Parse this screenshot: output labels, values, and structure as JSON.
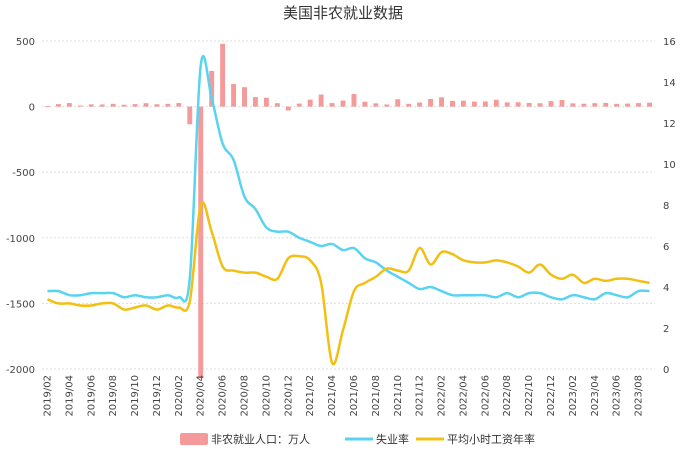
{
  "chart_data": {
    "type": "bar",
    "title": "美国非农就业数据",
    "colors": {
      "bar": "#f59a9a",
      "unemployment": "#5ad3f0",
      "wage": "#f2c012",
      "grid": "#dddddd",
      "text": "#444444"
    },
    "grid": true,
    "legend_position": "bottom",
    "y_left": {
      "ticks": [
        500,
        0,
        -500,
        -1000,
        -1500,
        -2000
      ],
      "ylim": [
        -2000,
        500
      ]
    },
    "y_right": {
      "ticks": [
        16,
        14,
        12,
        10,
        8,
        6,
        4,
        2,
        0
      ],
      "ylim": [
        0,
        16
      ]
    },
    "categories": [
      "2019/02",
      "2019/03",
      "2019/04",
      "2019/05",
      "2019/06",
      "2019/07",
      "2019/08",
      "2019/09",
      "2019/10",
      "2019/11",
      "2019/12",
      "2020/01",
      "2020/02",
      "2020/03",
      "2020/04",
      "2020/05",
      "2020/06",
      "2020/07",
      "2020/08",
      "2020/09",
      "2020/10",
      "2020/11",
      "2020/12",
      "2021/01",
      "2021/02",
      "2021/03",
      "2021/04",
      "2021/05",
      "2021/06",
      "2021/07",
      "2021/08",
      "2021/09",
      "2021/10",
      "2021/11",
      "2021/12",
      "2022/01",
      "2022/02",
      "2022/03",
      "2022/04",
      "2022/05",
      "2022/06",
      "2022/07",
      "2022/08",
      "2022/09",
      "2022/10",
      "2022/11",
      "2022/12",
      "2023/01",
      "2023/02",
      "2023/03",
      "2023/04",
      "2023/05",
      "2023/06",
      "2023/07",
      "2023/08",
      "2023/09"
    ],
    "x_tick_labels": [
      "2019/02",
      "2019/04",
      "2019/06",
      "2019/08",
      "2019/10",
      "2019/12",
      "2020/02",
      "2020/04",
      "2020/06",
      "2020/08",
      "2020/10",
      "2020/12",
      "2021/02",
      "2021/04",
      "2021/06",
      "2021/08",
      "2021/10",
      "2021/12",
      "2022/02",
      "2022/04",
      "2022/06",
      "2022/08",
      "2022/10",
      "2022/12",
      "2023/02",
      "2023/04",
      "2023/06",
      "2023/08"
    ],
    "series": [
      {
        "name": "非农就业人口：万人",
        "type": "bar",
        "axis": "left",
        "values": [
          3,
          19,
          27,
          8,
          17,
          16,
          21,
          14,
          19,
          26,
          18,
          21,
          27,
          -135,
          -2070,
          272,
          479,
          172,
          148,
          72,
          68,
          26,
          -29,
          23,
          53,
          92,
          27,
          46,
          96,
          37,
          25,
          16,
          56,
          21,
          31,
          58,
          71,
          43,
          45,
          38,
          39,
          52,
          32,
          33,
          28,
          26,
          42,
          50,
          25,
          22,
          26,
          28,
          21,
          23,
          27,
          30
        ]
      },
      {
        "name": "失业率",
        "type": "line",
        "axis": "right",
        "values": [
          3.8,
          3.8,
          3.6,
          3.6,
          3.7,
          3.7,
          3.7,
          3.5,
          3.6,
          3.5,
          3.5,
          3.6,
          3.5,
          4.4,
          14.8,
          13.2,
          11.0,
          10.2,
          8.4,
          7.8,
          6.9,
          6.7,
          6.7,
          6.4,
          6.2,
          6.0,
          6.1,
          5.8,
          5.9,
          5.4,
          5.2,
          4.8,
          4.5,
          4.2,
          3.9,
          4.0,
          3.8,
          3.6,
          3.6,
          3.6,
          3.6,
          3.5,
          3.7,
          3.5,
          3.7,
          3.7,
          3.5,
          3.4,
          3.6,
          3.5,
          3.4,
          3.7,
          3.6,
          3.5,
          3.8,
          3.8
        ]
      },
      {
        "name": "平均小时工资年率",
        "type": "line",
        "axis": "right",
        "values": [
          3.4,
          3.2,
          3.2,
          3.1,
          3.1,
          3.2,
          3.2,
          2.9,
          3.0,
          3.1,
          2.9,
          3.1,
          3.0,
          3.3,
          8.0,
          6.7,
          5.0,
          4.8,
          4.7,
          4.7,
          4.5,
          4.4,
          5.4,
          5.5,
          5.3,
          4.2,
          0.3,
          1.9,
          3.8,
          4.2,
          4.5,
          4.9,
          4.8,
          4.8,
          5.9,
          5.1,
          5.7,
          5.6,
          5.3,
          5.2,
          5.2,
          5.3,
          5.2,
          5.0,
          4.7,
          5.1,
          4.6,
          4.4,
          4.6,
          4.2,
          4.4,
          4.3,
          4.4,
          4.4,
          4.3,
          4.2
        ]
      }
    ]
  }
}
